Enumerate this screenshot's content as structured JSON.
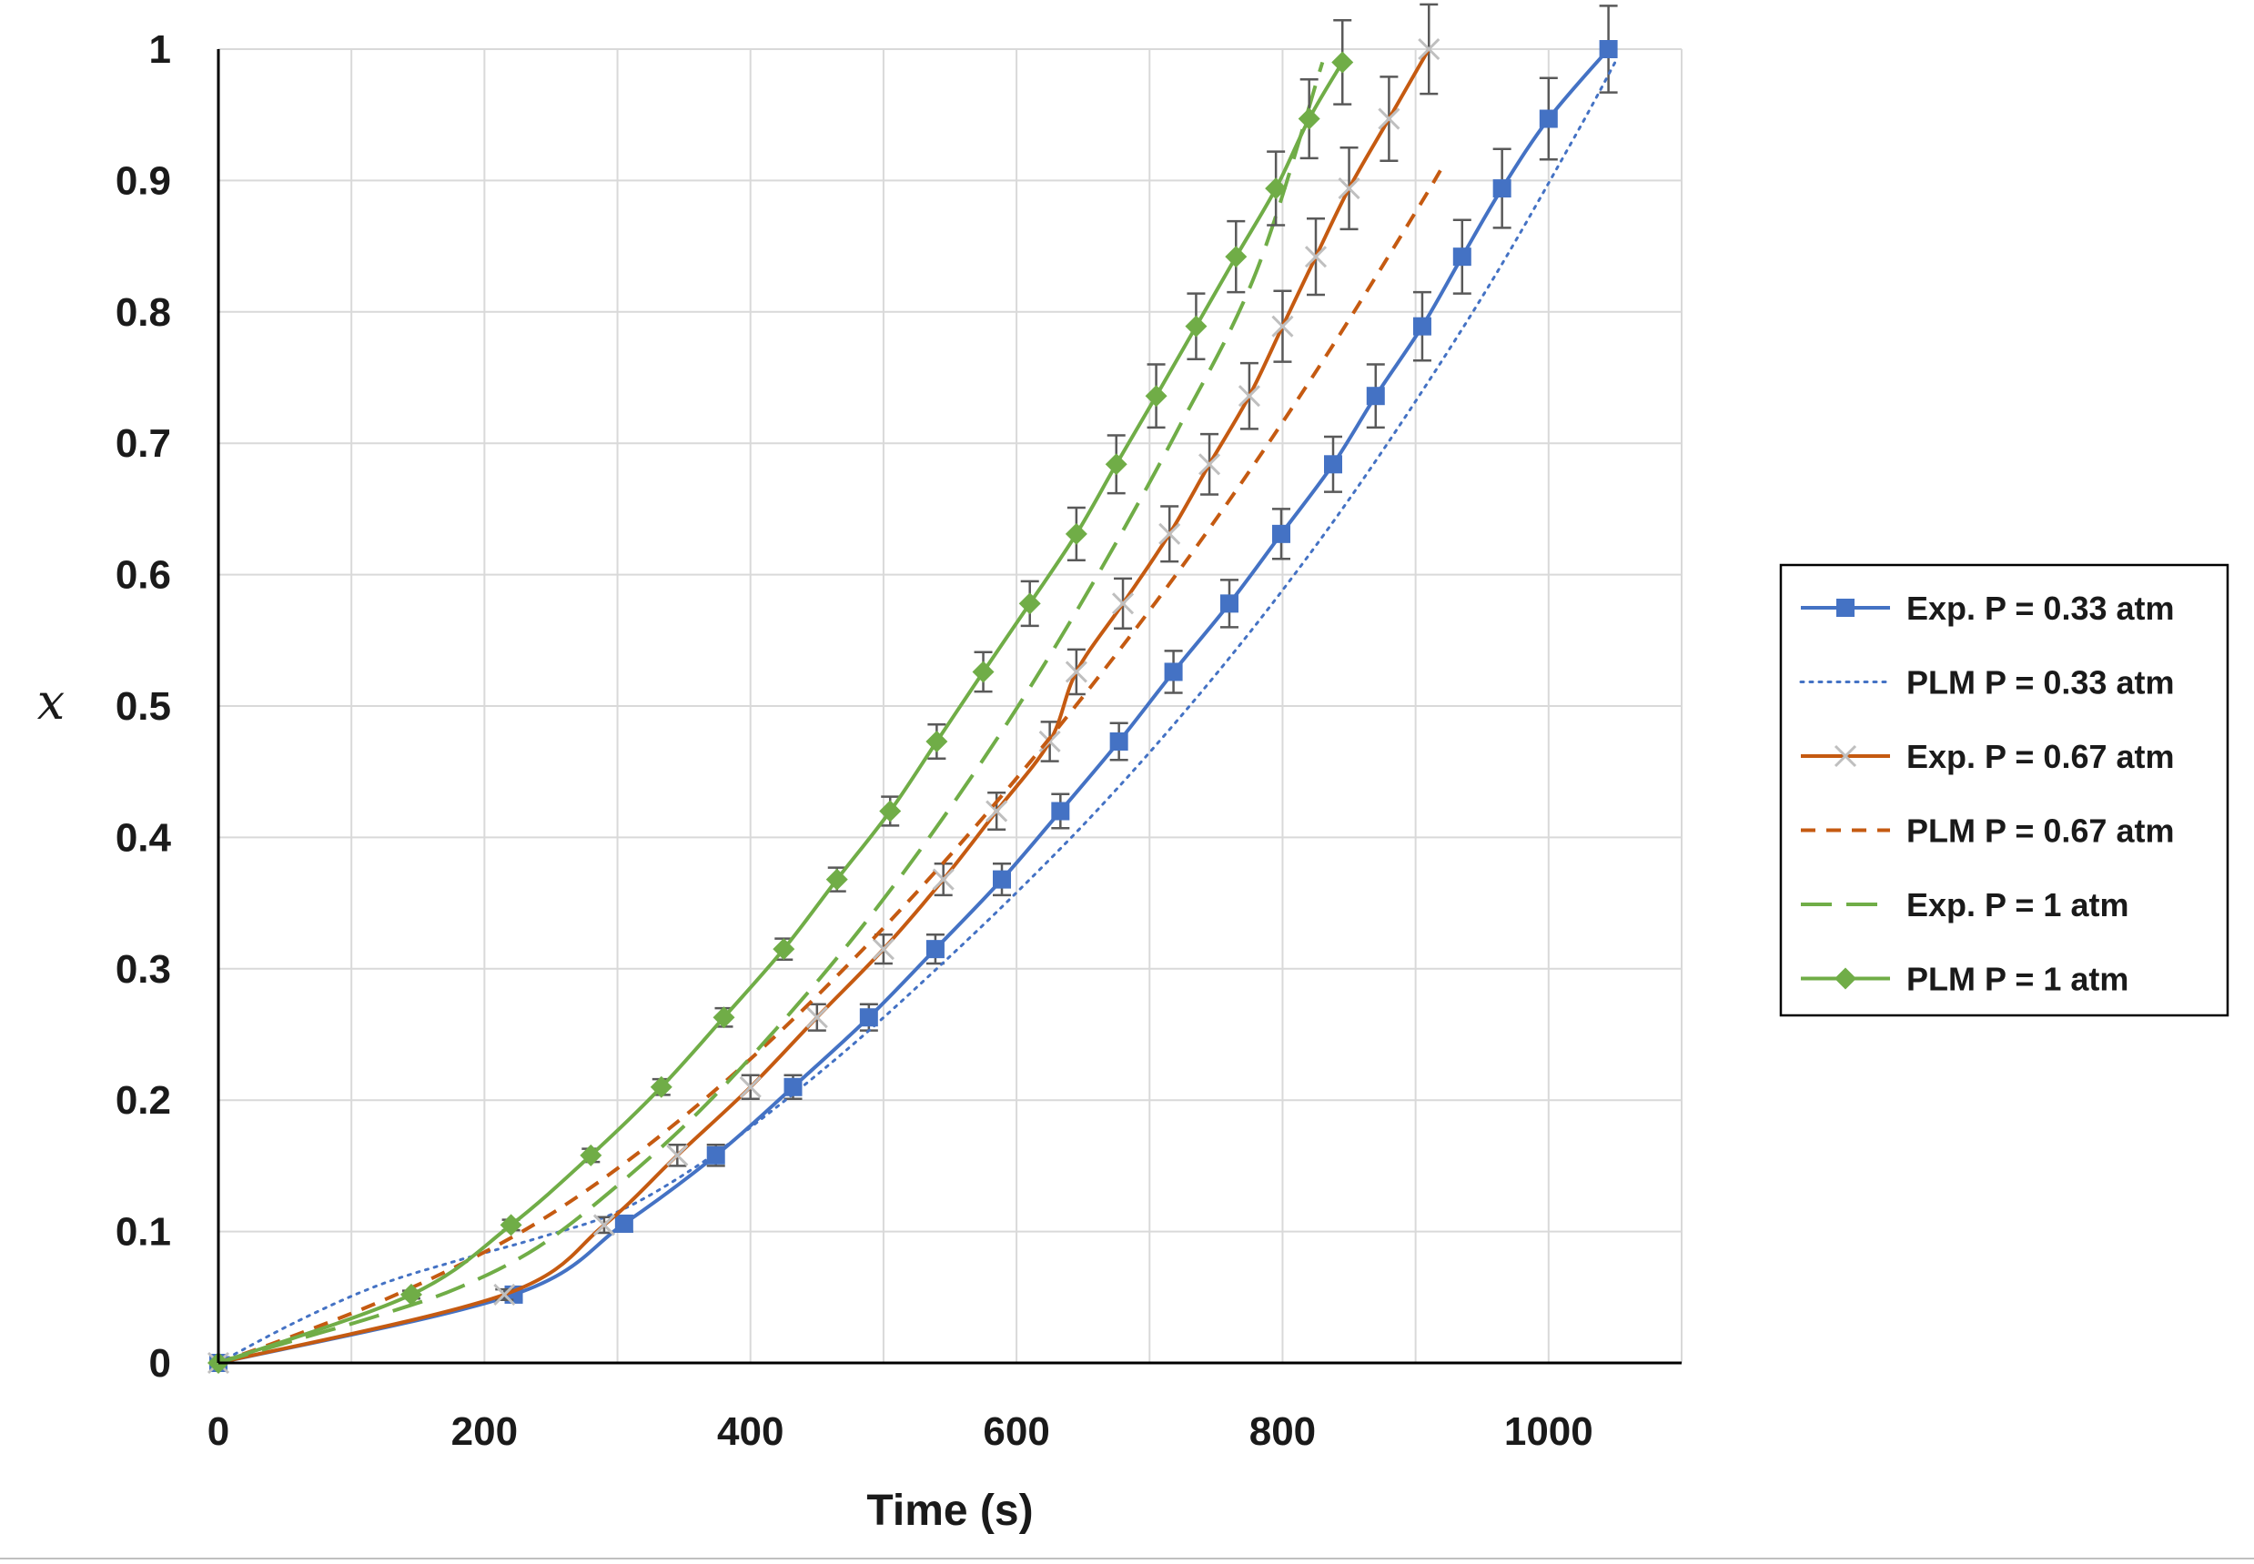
{
  "chart_data": {
    "type": "line",
    "xlabel": "Time (s)",
    "ylabel": "x",
    "xlim": [
      0,
      1100
    ],
    "ylim": [
      0,
      1
    ],
    "xticks": [
      "0",
      "200",
      "400",
      "600",
      "800",
      "1000"
    ],
    "yticks": [
      "0",
      "0.1",
      "0.2",
      "0.3",
      "0.4",
      "0.5",
      "0.6",
      "0.7",
      "0.8",
      "0.9",
      "1"
    ],
    "grid": true,
    "legend_position": "right",
    "series": [
      {
        "name": "Exp. P = 0.33 atm",
        "color": "#4472c4",
        "line": "solid",
        "marker": "square",
        "x": [
          0,
          222,
          305,
          374,
          432,
          489,
          539,
          589,
          633,
          677,
          718,
          760,
          799,
          838,
          870,
          905,
          935,
          965,
          1000,
          1045
        ],
        "y": [
          0,
          0.052,
          0.106,
          0.158,
          0.21,
          0.263,
          0.315,
          0.368,
          0.42,
          0.473,
          0.526,
          0.578,
          0.631,
          0.684,
          0.736,
          0.789,
          0.842,
          0.894,
          0.947,
          1.0
        ],
        "err": [
          0,
          0.004,
          0.006,
          0.008,
          0.009,
          0.01,
          0.011,
          0.012,
          0.013,
          0.014,
          0.016,
          0.018,
          0.019,
          0.021,
          0.024,
          0.026,
          0.028,
          0.03,
          0.031,
          0.033
        ]
      },
      {
        "name": "PLM P = 0.33 atm",
        "color": "#4472c4",
        "line": "dotted",
        "marker": "none",
        "x": [
          0,
          60,
          120,
          180,
          240,
          300,
          360,
          420,
          480,
          540,
          600,
          660,
          720,
          780,
          840,
          900,
          960,
          1020,
          1050
        ],
        "y": [
          0,
          0.032,
          0.059,
          0.078,
          0.095,
          0.115,
          0.15,
          0.195,
          0.245,
          0.3,
          0.358,
          0.42,
          0.488,
          0.562,
          0.643,
          0.732,
          0.828,
          0.934,
          0.99
        ]
      },
      {
        "name": "Exp. P = 0.67 atm",
        "color": "#c55a11",
        "line": "solid",
        "marker": "x",
        "x": [
          0,
          215,
          290,
          345,
          400,
          450,
          500,
          545,
          585,
          625,
          645,
          680,
          715,
          745,
          775,
          800,
          825,
          850,
          880,
          910
        ],
        "y": [
          0,
          0.052,
          0.105,
          0.158,
          0.21,
          0.263,
          0.315,
          0.368,
          0.42,
          0.473,
          0.526,
          0.578,
          0.631,
          0.684,
          0.736,
          0.789,
          0.842,
          0.894,
          0.947,
          1.0
        ],
        "err": [
          0,
          0.004,
          0.006,
          0.008,
          0.009,
          0.01,
          0.011,
          0.012,
          0.014,
          0.015,
          0.017,
          0.019,
          0.021,
          0.023,
          0.025,
          0.027,
          0.029,
          0.031,
          0.032,
          0.034
        ]
      },
      {
        "name": "PLM P = 0.67 atm",
        "color": "#c55a11",
        "line": "dashed",
        "marker": "none",
        "x": [
          0,
          60,
          120,
          180,
          240,
          300,
          360,
          420,
          480,
          540,
          600,
          660,
          720,
          780,
          840,
          900,
          920
        ],
        "y": [
          0,
          0.022,
          0.046,
          0.074,
          0.107,
          0.148,
          0.196,
          0.25,
          0.31,
          0.375,
          0.445,
          0.52,
          0.6,
          0.686,
          0.778,
          0.876,
          0.91
        ]
      },
      {
        "name": "Exp. P = 1 atm",
        "color": "#70ad47",
        "line": "long-dashed",
        "marker": "none",
        "x": [
          0,
          60,
          120,
          180,
          240,
          300,
          360,
          420,
          480,
          540,
          600,
          660,
          720,
          780,
          830
        ],
        "y": [
          0,
          0.018,
          0.036,
          0.057,
          0.088,
          0.135,
          0.19,
          0.255,
          0.327,
          0.408,
          0.498,
          0.598,
          0.708,
          0.83,
          0.99
        ]
      },
      {
        "name": "PLM P = 1 atm",
        "color": "#70ad47",
        "line": "solid",
        "marker": "diamond",
        "x": [
          0,
          145,
          220,
          280,
          333,
          380,
          425,
          465,
          505,
          540,
          575,
          610,
          645,
          675,
          705,
          735,
          765,
          795,
          820,
          845
        ],
        "y": [
          0,
          0.052,
          0.105,
          0.158,
          0.21,
          0.263,
          0.315,
          0.368,
          0.42,
          0.473,
          0.526,
          0.578,
          0.631,
          0.684,
          0.736,
          0.789,
          0.842,
          0.894,
          0.947,
          0.99
        ],
        "err": [
          0,
          0.003,
          0.004,
          0.005,
          0.006,
          0.007,
          0.008,
          0.009,
          0.011,
          0.013,
          0.015,
          0.017,
          0.02,
          0.022,
          0.024,
          0.025,
          0.027,
          0.028,
          0.03,
          0.032
        ]
      }
    ]
  }
}
